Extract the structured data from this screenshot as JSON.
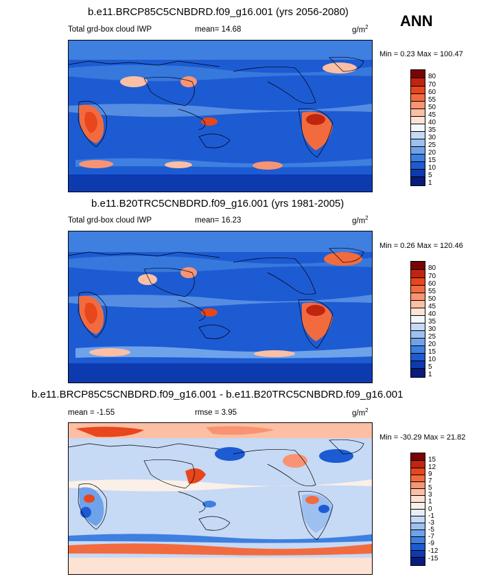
{
  "season": "ANN",
  "panels": [
    {
      "title": "b.e11.BRCP85C5CNBDRD.f09_g16.001 (yrs 2056-2080)",
      "left_label": "Total grd-box cloud IWP",
      "stat": "mean=  14.68",
      "units": "g/m",
      "units_exp": "2",
      "minmax": "Min =   0.23 Max = 100.47",
      "colors": [
        "#7a0403",
        "#c0250f",
        "#e8461c",
        "#f26b3f",
        "#f89473",
        "#fcbfa4",
        "#fde3d4",
        "#f4f7fb",
        "#c6d9f5",
        "#9dc0f0",
        "#6ea3ea",
        "#3e7fe0",
        "#1d5bd3",
        "#0d3aaf",
        "#0a1b7e"
      ],
      "labels": [
        "80",
        "70",
        "60",
        "55",
        "50",
        "45",
        "40",
        "35",
        "30",
        "25",
        "20",
        "15",
        "10",
        "5",
        "1"
      ]
    },
    {
      "title": "b.e11.B20TRC5CNBDRD.f09_g16.001 (yrs 1981-2005)",
      "left_label": "Total grd-box cloud IWP",
      "stat": "mean=  16.23",
      "units": "g/m",
      "units_exp": "2",
      "minmax": "Min =   0.26 Max = 120.46",
      "colors": [
        "#7a0403",
        "#c0250f",
        "#e8461c",
        "#f26b3f",
        "#f89473",
        "#fcbfa4",
        "#fde3d4",
        "#f4f7fb",
        "#c6d9f5",
        "#9dc0f0",
        "#6ea3ea",
        "#3e7fe0",
        "#1d5bd3",
        "#0d3aaf",
        "#0a1b7e"
      ],
      "labels": [
        "80",
        "70",
        "60",
        "55",
        "50",
        "45",
        "40",
        "35",
        "30",
        "25",
        "20",
        "15",
        "10",
        "5",
        "1"
      ]
    },
    {
      "title": "b.e11.BRCP85C5CNBDRD.f09_g16.001 - b.e11.B20TRC5CNBDRD.f09_g16.001",
      "left_label": "mean =  -1.55",
      "stat": "rmse =  3.95",
      "units": "g/m",
      "units_exp": "2",
      "minmax": "Min = -30.29 Max =  21.82",
      "colors": [
        "#7a0403",
        "#c0250f",
        "#e8461c",
        "#f26b3f",
        "#f89473",
        "#fcbfa4",
        "#fde3d4",
        "#fbf0e8",
        "#e5eefb",
        "#c6d9f5",
        "#9dc0f0",
        "#6ea3ea",
        "#3e7fe0",
        "#1d5bd3",
        "#0d3aaf",
        "#0a1b7e"
      ],
      "labels": [
        "15",
        "12",
        "9",
        "7",
        "5",
        "3",
        "1",
        "0",
        "-1",
        "-3",
        "-5",
        "-7",
        "-9",
        "-12",
        "-15"
      ]
    }
  ]
}
